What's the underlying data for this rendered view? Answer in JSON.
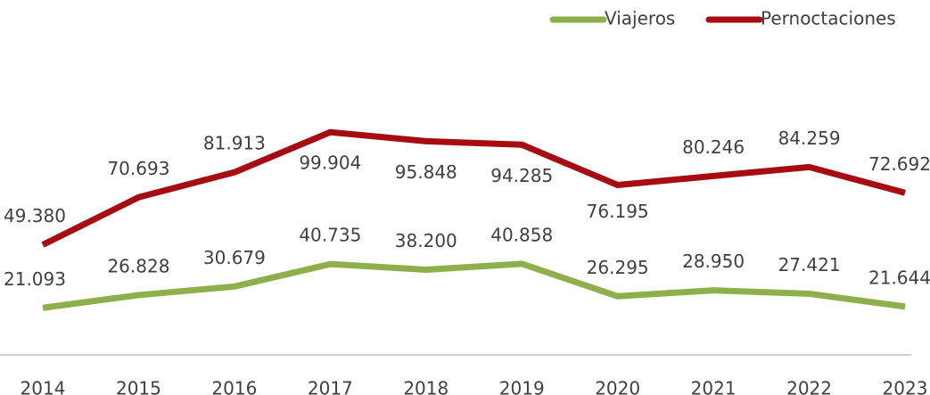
{
  "chart_data": {
    "type": "line",
    "categories": [
      "2014",
      "2015",
      "2016",
      "2017",
      "2018",
      "2019",
      "2020",
      "2021",
      "2022",
      "2023"
    ],
    "series": [
      {
        "name": "Viajeros",
        "color": "#8eb04c",
        "values": [
          21093,
          26828,
          30679,
          40735,
          38200,
          40858,
          26295,
          28950,
          27421,
          21644
        ],
        "value_labels": [
          "21.093",
          "26.828",
          "30.679",
          "40.735",
          "38.200",
          "40.858",
          "26.295",
          "28.950",
          "27.421",
          "21.644"
        ]
      },
      {
        "name": "Pernoctaciones",
        "color": "#a50d12",
        "values": [
          49380,
          70693,
          81913,
          99904,
          95848,
          94285,
          76195,
          80246,
          84259,
          72692
        ],
        "value_labels": [
          "49.380",
          "70.693",
          "81.913",
          "99.904",
          "95.848",
          "94.285",
          "76.195",
          "80.246",
          "84.259",
          "72.692"
        ]
      }
    ],
    "ylim": [
      0,
      110000
    ],
    "legend": "top-right"
  }
}
